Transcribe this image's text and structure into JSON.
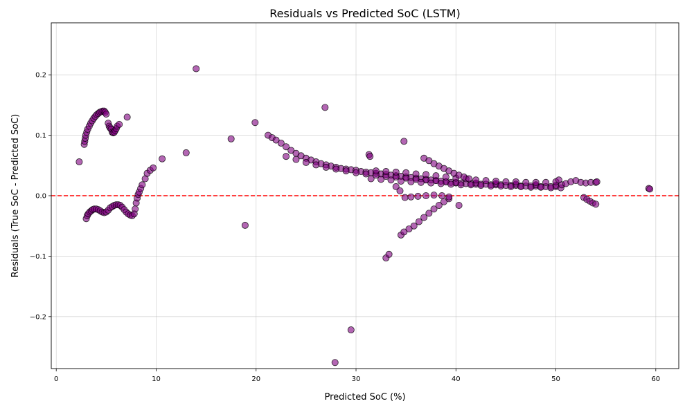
{
  "chart_data": {
    "type": "scatter",
    "title": "Residuals vs Predicted SoC (LSTM)",
    "xlabel": "Predicted SoC (%)",
    "ylabel": "Residuals (True SoC - Predicted SoC)",
    "xlim": [
      -0.5,
      62.3
    ],
    "ylim": [
      -0.286,
      0.286
    ],
    "xticks": [
      0,
      10,
      20,
      30,
      40,
      50,
      60
    ],
    "yticks": [
      -0.2,
      -0.1,
      0.0,
      0.1,
      0.2
    ],
    "xtick_labels": [
      "0",
      "10",
      "20",
      "30",
      "40",
      "50",
      "60"
    ],
    "ytick_labels": [
      "−0.2",
      "−0.1",
      "0.0",
      "0.1",
      "0.2"
    ],
    "grid": true,
    "reference_line": {
      "y": 0,
      "style": "dashed",
      "color": "#ff0000"
    },
    "colors": {
      "marker_fill": "#800080",
      "marker_edge": "#000000"
    },
    "points": [
      [
        2.3,
        0.056
      ],
      [
        2.8,
        0.085
      ],
      [
        2.85,
        0.09
      ],
      [
        2.9,
        0.095
      ],
      [
        2.95,
        0.1
      ],
      [
        3.05,
        0.105
      ],
      [
        3.15,
        0.11
      ],
      [
        3.3,
        0.115
      ],
      [
        3.45,
        0.12
      ],
      [
        3.6,
        0.124
      ],
      [
        3.75,
        0.128
      ],
      [
        3.9,
        0.131
      ],
      [
        4.05,
        0.134
      ],
      [
        4.2,
        0.136
      ],
      [
        4.35,
        0.138
      ],
      [
        4.5,
        0.139
      ],
      [
        4.65,
        0.14
      ],
      [
        4.8,
        0.14
      ],
      [
        4.9,
        0.138
      ],
      [
        5.0,
        0.135
      ],
      [
        5.2,
        0.12
      ],
      [
        5.3,
        0.115
      ],
      [
        5.4,
        0.112
      ],
      [
        5.5,
        0.11
      ],
      [
        5.6,
        0.105
      ],
      [
        5.7,
        0.104
      ],
      [
        5.8,
        0.105
      ],
      [
        5.9,
        0.108
      ],
      [
        6.0,
        0.111
      ],
      [
        6.1,
        0.115
      ],
      [
        6.3,
        0.118
      ],
      [
        7.1,
        0.13
      ],
      [
        3.0,
        -0.038
      ],
      [
        3.1,
        -0.033
      ],
      [
        3.2,
        -0.03
      ],
      [
        3.35,
        -0.027
      ],
      [
        3.5,
        -0.025
      ],
      [
        3.65,
        -0.023
      ],
      [
        3.8,
        -0.022
      ],
      [
        4.0,
        -0.022
      ],
      [
        4.2,
        -0.023
      ],
      [
        4.4,
        -0.025
      ],
      [
        4.6,
        -0.027
      ],
      [
        4.8,
        -0.028
      ],
      [
        5.0,
        -0.027
      ],
      [
        5.2,
        -0.024
      ],
      [
        5.4,
        -0.02
      ],
      [
        5.6,
        -0.018
      ],
      [
        5.8,
        -0.016
      ],
      [
        6.0,
        -0.015
      ],
      [
        6.2,
        -0.015
      ],
      [
        6.4,
        -0.016
      ],
      [
        6.6,
        -0.019
      ],
      [
        6.8,
        -0.023
      ],
      [
        7.0,
        -0.027
      ],
      [
        7.2,
        -0.03
      ],
      [
        7.4,
        -0.032
      ],
      [
        7.6,
        -0.033
      ],
      [
        7.8,
        -0.03
      ],
      [
        7.9,
        -0.022
      ],
      [
        8.0,
        -0.012
      ],
      [
        8.1,
        -0.004
      ],
      [
        8.2,
        0.002
      ],
      [
        8.3,
        0.006
      ],
      [
        8.45,
        0.012
      ],
      [
        8.6,
        0.018
      ],
      [
        8.9,
        0.028
      ],
      [
        9.1,
        0.037
      ],
      [
        9.4,
        0.042
      ],
      [
        9.7,
        0.046
      ],
      [
        10.6,
        0.061
      ],
      [
        13.0,
        0.071
      ],
      [
        14.0,
        0.21
      ],
      [
        17.5,
        0.094
      ],
      [
        18.9,
        -0.049
      ],
      [
        19.9,
        0.121
      ],
      [
        26.9,
        0.146
      ],
      [
        29.5,
        -0.222
      ],
      [
        27.9,
        -0.276
      ],
      [
        34.8,
        0.09
      ],
      [
        21.2,
        0.1
      ],
      [
        21.6,
        0.096
      ],
      [
        22.0,
        0.092
      ],
      [
        22.5,
        0.087
      ],
      [
        23.0,
        0.081
      ],
      [
        23.5,
        0.075
      ],
      [
        24.0,
        0.07
      ],
      [
        24.5,
        0.066
      ],
      [
        25.0,
        0.062
      ],
      [
        25.5,
        0.059
      ],
      [
        26.0,
        0.056
      ],
      [
        26.5,
        0.053
      ],
      [
        27.0,
        0.051
      ],
      [
        27.5,
        0.049
      ],
      [
        28.0,
        0.047
      ],
      [
        28.5,
        0.045
      ],
      [
        29.0,
        0.044
      ],
      [
        29.5,
        0.043
      ],
      [
        30.0,
        0.042
      ],
      [
        30.5,
        0.04
      ],
      [
        31.0,
        0.039
      ],
      [
        31.5,
        0.038
      ],
      [
        32.0,
        0.037
      ],
      [
        32.5,
        0.036
      ],
      [
        33.0,
        0.035
      ],
      [
        33.5,
        0.034
      ],
      [
        34.0,
        0.033
      ],
      [
        34.5,
        0.032
      ],
      [
        35.0,
        0.031
      ],
      [
        35.5,
        0.03
      ],
      [
        36.0,
        0.029
      ],
      [
        36.5,
        0.028
      ],
      [
        37.0,
        0.027
      ],
      [
        37.5,
        0.026
      ],
      [
        38.0,
        0.025
      ],
      [
        38.5,
        0.024
      ],
      [
        39.0,
        0.023
      ],
      [
        39.5,
        0.022
      ],
      [
        40.0,
        0.021
      ],
      [
        40.5,
        0.021
      ],
      [
        41.0,
        0.02
      ],
      [
        41.5,
        0.02
      ],
      [
        42.0,
        0.019
      ],
      [
        42.5,
        0.019
      ],
      [
        43.0,
        0.019
      ],
      [
        43.5,
        0.018
      ],
      [
        44.0,
        0.018
      ],
      [
        44.5,
        0.018
      ],
      [
        45.0,
        0.017
      ],
      [
        45.5,
        0.017
      ],
      [
        46.0,
        0.017
      ],
      [
        46.5,
        0.016
      ],
      [
        47.0,
        0.016
      ],
      [
        47.5,
        0.016
      ],
      [
        48.0,
        0.016
      ],
      [
        48.5,
        0.015
      ],
      [
        49.0,
        0.015
      ],
      [
        49.5,
        0.015
      ],
      [
        50.0,
        0.015
      ],
      [
        23.0,
        0.065
      ],
      [
        24.0,
        0.06
      ],
      [
        25.0,
        0.055
      ],
      [
        26.0,
        0.051
      ],
      [
        27.0,
        0.047
      ],
      [
        28.0,
        0.044
      ],
      [
        29.0,
        0.041
      ],
      [
        30.0,
        0.038
      ],
      [
        31.0,
        0.036
      ],
      [
        32.0,
        0.034
      ],
      [
        33.0,
        0.032
      ],
      [
        34.0,
        0.031
      ],
      [
        35.0,
        0.029
      ],
      [
        36.0,
        0.027
      ],
      [
        37.0,
        0.026
      ],
      [
        38.0,
        0.025
      ],
      [
        39.0,
        0.023
      ],
      [
        40.0,
        0.022
      ],
      [
        42.0,
        0.021
      ],
      [
        44.0,
        0.02
      ],
      [
        46.0,
        0.019
      ],
      [
        48.0,
        0.018
      ],
      [
        50.0,
        0.017
      ],
      [
        31.5,
        0.028
      ],
      [
        32.5,
        0.027
      ],
      [
        33.5,
        0.026
      ],
      [
        34.5,
        0.024
      ],
      [
        35.5,
        0.023
      ],
      [
        36.5,
        0.022
      ],
      [
        37.5,
        0.021
      ],
      [
        38.5,
        0.02
      ],
      [
        39.5,
        0.019
      ],
      [
        40.5,
        0.018
      ],
      [
        41.5,
        0.018
      ],
      [
        42.5,
        0.017
      ],
      [
        43.5,
        0.016
      ],
      [
        44.5,
        0.016
      ],
      [
        45.5,
        0.015
      ],
      [
        46.5,
        0.015
      ],
      [
        47.5,
        0.014
      ],
      [
        48.5,
        0.014
      ],
      [
        49.5,
        0.013
      ],
      [
        50.5,
        0.013
      ],
      [
        32.0,
        0.041
      ],
      [
        33.0,
        0.04
      ],
      [
        34.0,
        0.039
      ],
      [
        35.0,
        0.038
      ],
      [
        36.0,
        0.036
      ],
      [
        37.0,
        0.035
      ],
      [
        38.0,
        0.033
      ],
      [
        39.0,
        0.031
      ],
      [
        40.0,
        0.029
      ],
      [
        41.0,
        0.028
      ],
      [
        42.0,
        0.026
      ],
      [
        43.0,
        0.025
      ],
      [
        44.0,
        0.024
      ],
      [
        45.0,
        0.023
      ],
      [
        46.0,
        0.023
      ],
      [
        47.0,
        0.022
      ],
      [
        48.0,
        0.022
      ],
      [
        49.0,
        0.022
      ],
      [
        50.0,
        0.023
      ],
      [
        50.3,
        0.026
      ],
      [
        50.6,
        0.018
      ],
      [
        51.0,
        0.02
      ],
      [
        51.5,
        0.023
      ],
      [
        52.0,
        0.025
      ],
      [
        52.5,
        0.022
      ],
      [
        53.0,
        0.021
      ],
      [
        53.5,
        0.022
      ],
      [
        54.0,
        0.022
      ],
      [
        54.1,
        0.023
      ],
      [
        31.3,
        0.068
      ],
      [
        31.4,
        0.065
      ],
      [
        36.8,
        0.062
      ],
      [
        37.3,
        0.058
      ],
      [
        37.8,
        0.053
      ],
      [
        38.3,
        0.049
      ],
      [
        38.8,
        0.045
      ],
      [
        39.3,
        0.041
      ],
      [
        39.8,
        0.037
      ],
      [
        40.3,
        0.034
      ],
      [
        40.8,
        0.031
      ],
      [
        41.3,
        0.028
      ],
      [
        34.5,
        -0.065
      ],
      [
        34.8,
        -0.06
      ],
      [
        35.3,
        -0.055
      ],
      [
        35.8,
        -0.05
      ],
      [
        36.3,
        -0.043
      ],
      [
        36.8,
        -0.036
      ],
      [
        37.3,
        -0.029
      ],
      [
        37.8,
        -0.022
      ],
      [
        38.3,
        -0.016
      ],
      [
        38.8,
        -0.01
      ],
      [
        39.3,
        -0.005
      ],
      [
        33.0,
        -0.103
      ],
      [
        33.3,
        -0.097
      ],
      [
        34.0,
        0.015
      ],
      [
        34.4,
        0.008
      ],
      [
        34.9,
        -0.003
      ],
      [
        35.5,
        -0.002
      ],
      [
        36.2,
        -0.001
      ],
      [
        37.0,
        0.0
      ],
      [
        37.8,
        0.001
      ],
      [
        38.6,
        0.0
      ],
      [
        39.3,
        -0.002
      ],
      [
        40.3,
        -0.016
      ],
      [
        52.8,
        -0.003
      ],
      [
        53.1,
        -0.006
      ],
      [
        53.4,
        -0.009
      ],
      [
        53.7,
        -0.012
      ],
      [
        54.0,
        -0.014
      ],
      [
        59.3,
        0.012
      ],
      [
        59.4,
        0.011
      ]
    ]
  }
}
